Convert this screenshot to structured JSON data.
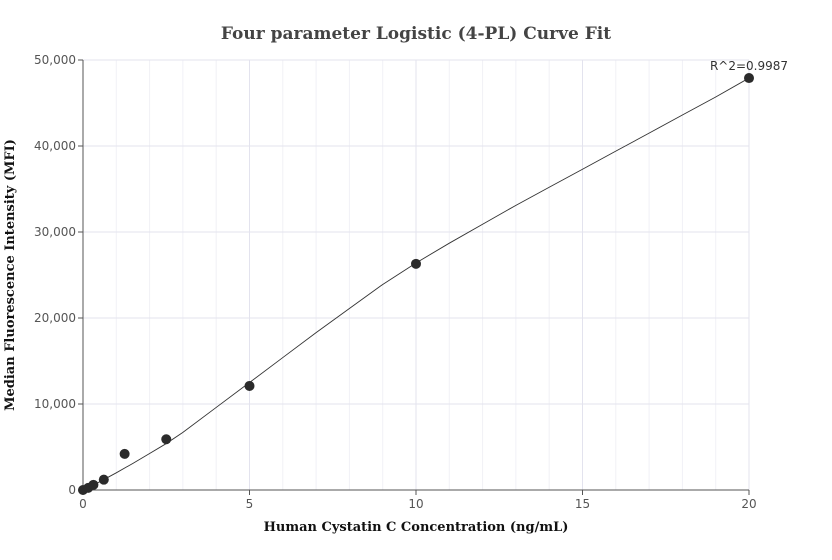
{
  "chart_data": {
    "type": "scatter",
    "title": "Four parameter Logistic (4-PL) Curve Fit",
    "xlabel": "Human Cystatin C Concentration (ng/mL)",
    "ylabel": "Median Fluorescence Intensity (MFI)",
    "xlim": [
      0,
      20
    ],
    "ylim": [
      0,
      50000
    ],
    "xticks": [
      0,
      5,
      10,
      15,
      20
    ],
    "xtick_labels": [
      "0",
      "5",
      "10",
      "15",
      "20"
    ],
    "yticks": [
      0,
      10000,
      20000,
      30000,
      40000,
      50000
    ],
    "ytick_labels": [
      "0",
      "10,000",
      "20,000",
      "30,000",
      "40,000",
      "50,000"
    ],
    "grid": true,
    "annotation": "R^2=0.9987",
    "points": [
      {
        "x": 0,
        "y": 0
      },
      {
        "x": 0.156,
        "y": 250
      },
      {
        "x": 0.3125,
        "y": 600
      },
      {
        "x": 0.625,
        "y": 1200
      },
      {
        "x": 1.25,
        "y": 4200
      },
      {
        "x": 2.5,
        "y": 5900
      },
      {
        "x": 5,
        "y": 12100
      },
      {
        "x": 10,
        "y": 26300
      },
      {
        "x": 20,
        "y": 47900
      }
    ],
    "fit_curve": {
      "x": [
        0,
        0.5,
        1,
        1.5,
        2,
        2.5,
        3,
        4,
        5,
        6,
        7,
        8,
        9,
        10,
        11,
        12,
        13,
        14,
        15,
        16,
        17,
        18,
        19,
        20
      ],
      "y": [
        0,
        950,
        2000,
        3100,
        4250,
        5400,
        6700,
        9600,
        12500,
        15400,
        18300,
        21100,
        23900,
        26400,
        28700,
        30900,
        33100,
        35200,
        37300,
        39400,
        41500,
        43600,
        45700,
        47900
      ]
    }
  }
}
